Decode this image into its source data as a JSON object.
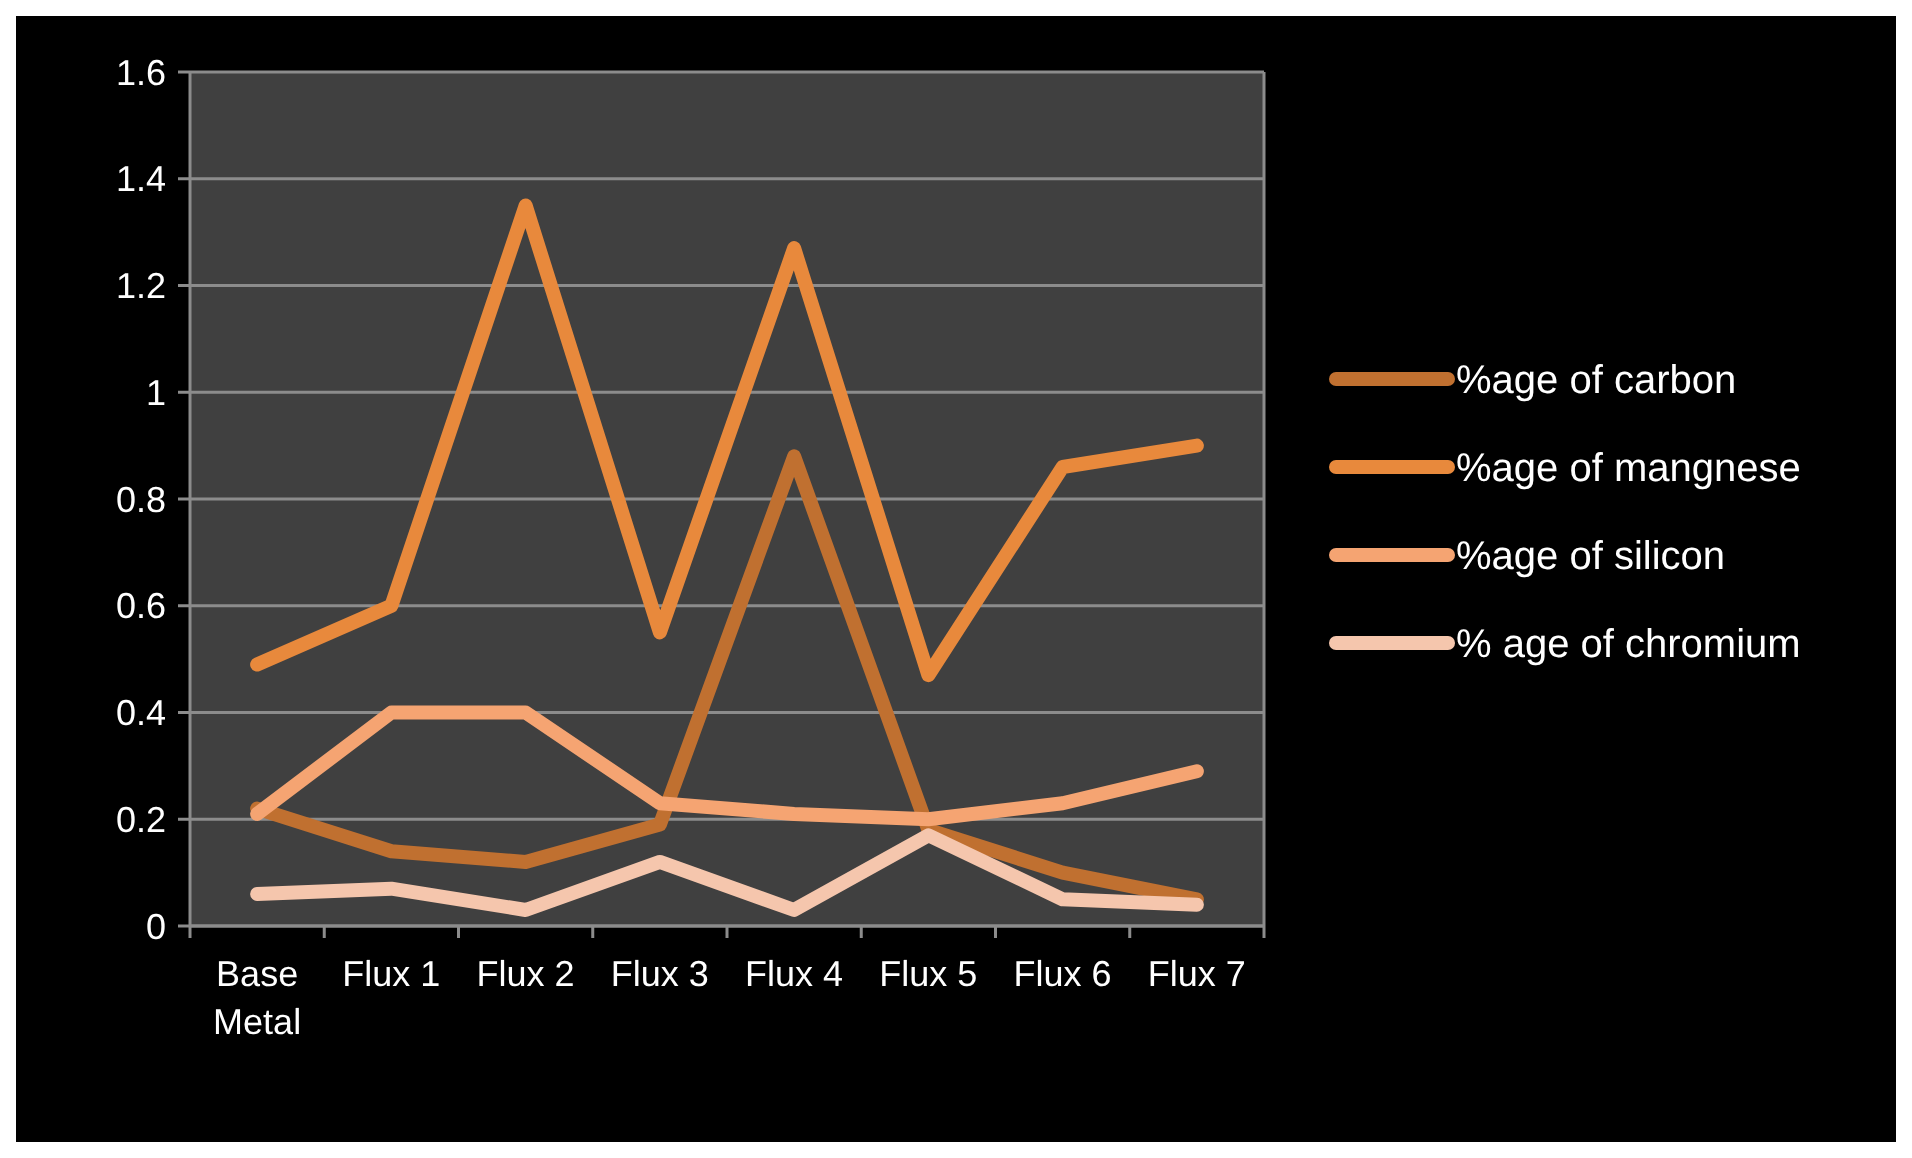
{
  "chart_data": {
    "type": "line",
    "categories": [
      "Base Metal",
      "Flux 1",
      "Flux 2",
      "Flux 3",
      "Flux 4",
      "Flux 5",
      "Flux 6",
      "Flux 7"
    ],
    "series": [
      {
        "name": "%age of carbon",
        "color": "#c07030",
        "values": [
          0.22,
          0.14,
          0.12,
          0.19,
          0.88,
          0.18,
          0.1,
          0.05
        ]
      },
      {
        "name": "%age of mangnese",
        "color": "#e8893c",
        "values": [
          0.49,
          0.6,
          1.35,
          0.55,
          1.27,
          0.47,
          0.86,
          0.9
        ]
      },
      {
        "name": "%age of silicon",
        "color": "#f5a472",
        "values": [
          0.21,
          0.4,
          0.4,
          0.23,
          0.21,
          0.2,
          0.23,
          0.29
        ]
      },
      {
        "name": "% age of chromium",
        "color": "#f5c6ad",
        "values": [
          0.06,
          0.07,
          0.03,
          0.12,
          0.03,
          0.17,
          0.05,
          0.04
        ]
      }
    ],
    "ylim": [
      0,
      1.6
    ],
    "yticks": [
      0,
      0.2,
      0.4,
      0.6,
      0.8,
      {
        "value": 1,
        "label": "1"
      },
      1.2,
      1.4,
      1.6
    ],
    "grid": "y",
    "legend": "right",
    "marker": "none",
    "line_style": "solid"
  }
}
